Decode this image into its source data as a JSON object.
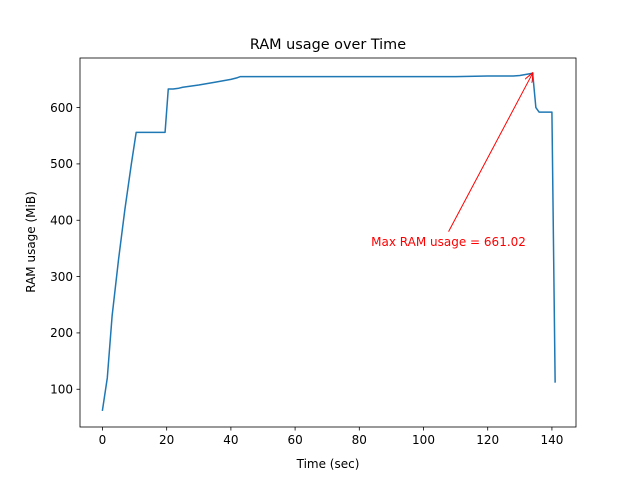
{
  "chart_data": {
    "type": "line",
    "title": "RAM usage over Time",
    "xlabel": "Time (sec)",
    "ylabel": "RAM usage (MiB)",
    "xlim": [
      -7,
      147.5
    ],
    "ylim": [
      33,
      688
    ],
    "xticks": [
      0,
      20,
      40,
      60,
      80,
      100,
      120,
      140
    ],
    "yticks": [
      100,
      200,
      300,
      400,
      500,
      600
    ],
    "grid": false,
    "line_color": "#1f77b4",
    "series": [
      {
        "x": [
          0,
          1.5,
          3,
          5,
          7,
          9,
          10.5,
          12,
          14,
          16,
          19.5,
          20.5,
          22,
          23.5,
          25,
          30,
          35,
          40,
          42,
          43,
          45,
          50,
          60,
          70,
          80,
          90,
          100,
          110,
          120,
          125,
          128,
          130,
          132,
          134,
          135,
          136,
          138,
          140,
          141
        ],
        "y": [
          63,
          120,
          230,
          330,
          420,
          500,
          556,
          556,
          556,
          556,
          556,
          633,
          633,
          634,
          636,
          640,
          645,
          650,
          653,
          655,
          655,
          655,
          655,
          655,
          655,
          655,
          655,
          655,
          656,
          656,
          656,
          657,
          659,
          661,
          600,
          592,
          592,
          592,
          113
        ]
      }
    ],
    "annotation": {
      "text": "Max RAM usage = 661.02",
      "xy": [
        134,
        661.02
      ],
      "xytext": [
        83.7,
        362
      ],
      "color": "#ff0000"
    }
  }
}
